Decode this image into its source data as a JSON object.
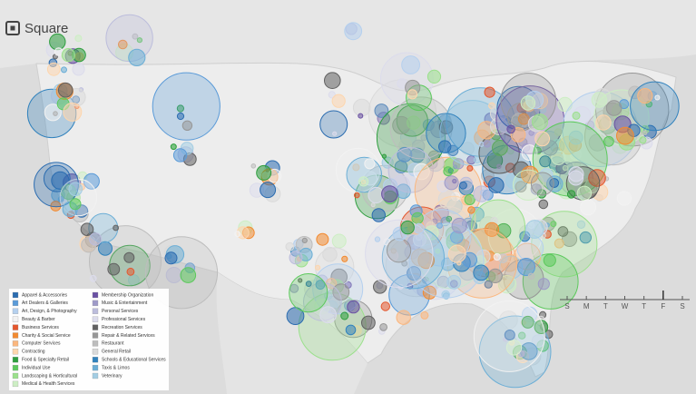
{
  "logo": "Square",
  "legend": {
    "items": [
      {
        "label": "Apparel & Accessories",
        "color": "#2b6cb0"
      },
      {
        "label": "Art Dealers & Galleries",
        "color": "#5b9bd8"
      },
      {
        "label": "Art, Design, & Photography",
        "color": "#b5d0ee"
      },
      {
        "label": "Beauty & Barber",
        "color": "#f2f2f2"
      },
      {
        "label": "Business Services",
        "color": "#e4572e"
      },
      {
        "label": "Charity & Social Service",
        "color": "#f28a30"
      },
      {
        "label": "Computer Services",
        "color": "#fbb77e"
      },
      {
        "label": "Contracting",
        "color": "#fdd6ae"
      },
      {
        "label": "Food & Specialty Retail",
        "color": "#2e9e3e"
      },
      {
        "label": "Individual Use",
        "color": "#5cc95c"
      },
      {
        "label": "Landscaping & Horticultural",
        "color": "#9be08c"
      },
      {
        "label": "Medical & Health Services",
        "color": "#cdeec4"
      },
      {
        "label": "Membership Organization",
        "color": "#6a51a3"
      },
      {
        "label": "Music & Entertainment",
        "color": "#9e9ac8"
      },
      {
        "label": "Personal Services",
        "color": "#bcbddc"
      },
      {
        "label": "Professional Services",
        "color": "#dcdcec"
      },
      {
        "label": "Recreation Services",
        "color": "#616161"
      },
      {
        "label": "Repair & Related Services",
        "color": "#979797"
      },
      {
        "label": "Restaurant",
        "color": "#bdbdbd"
      },
      {
        "label": "General Retail",
        "color": "#dadada"
      },
      {
        "label": "Schools & Educational Services",
        "color": "#3182bd"
      },
      {
        "label": "Taxis & Limos",
        "color": "#6baed6"
      },
      {
        "label": "Veterinary",
        "color": "#a3cde3"
      }
    ]
  },
  "timeline": {
    "days": [
      "S",
      "M",
      "T",
      "W",
      "T",
      "F",
      "S"
    ],
    "current": 5
  }
}
